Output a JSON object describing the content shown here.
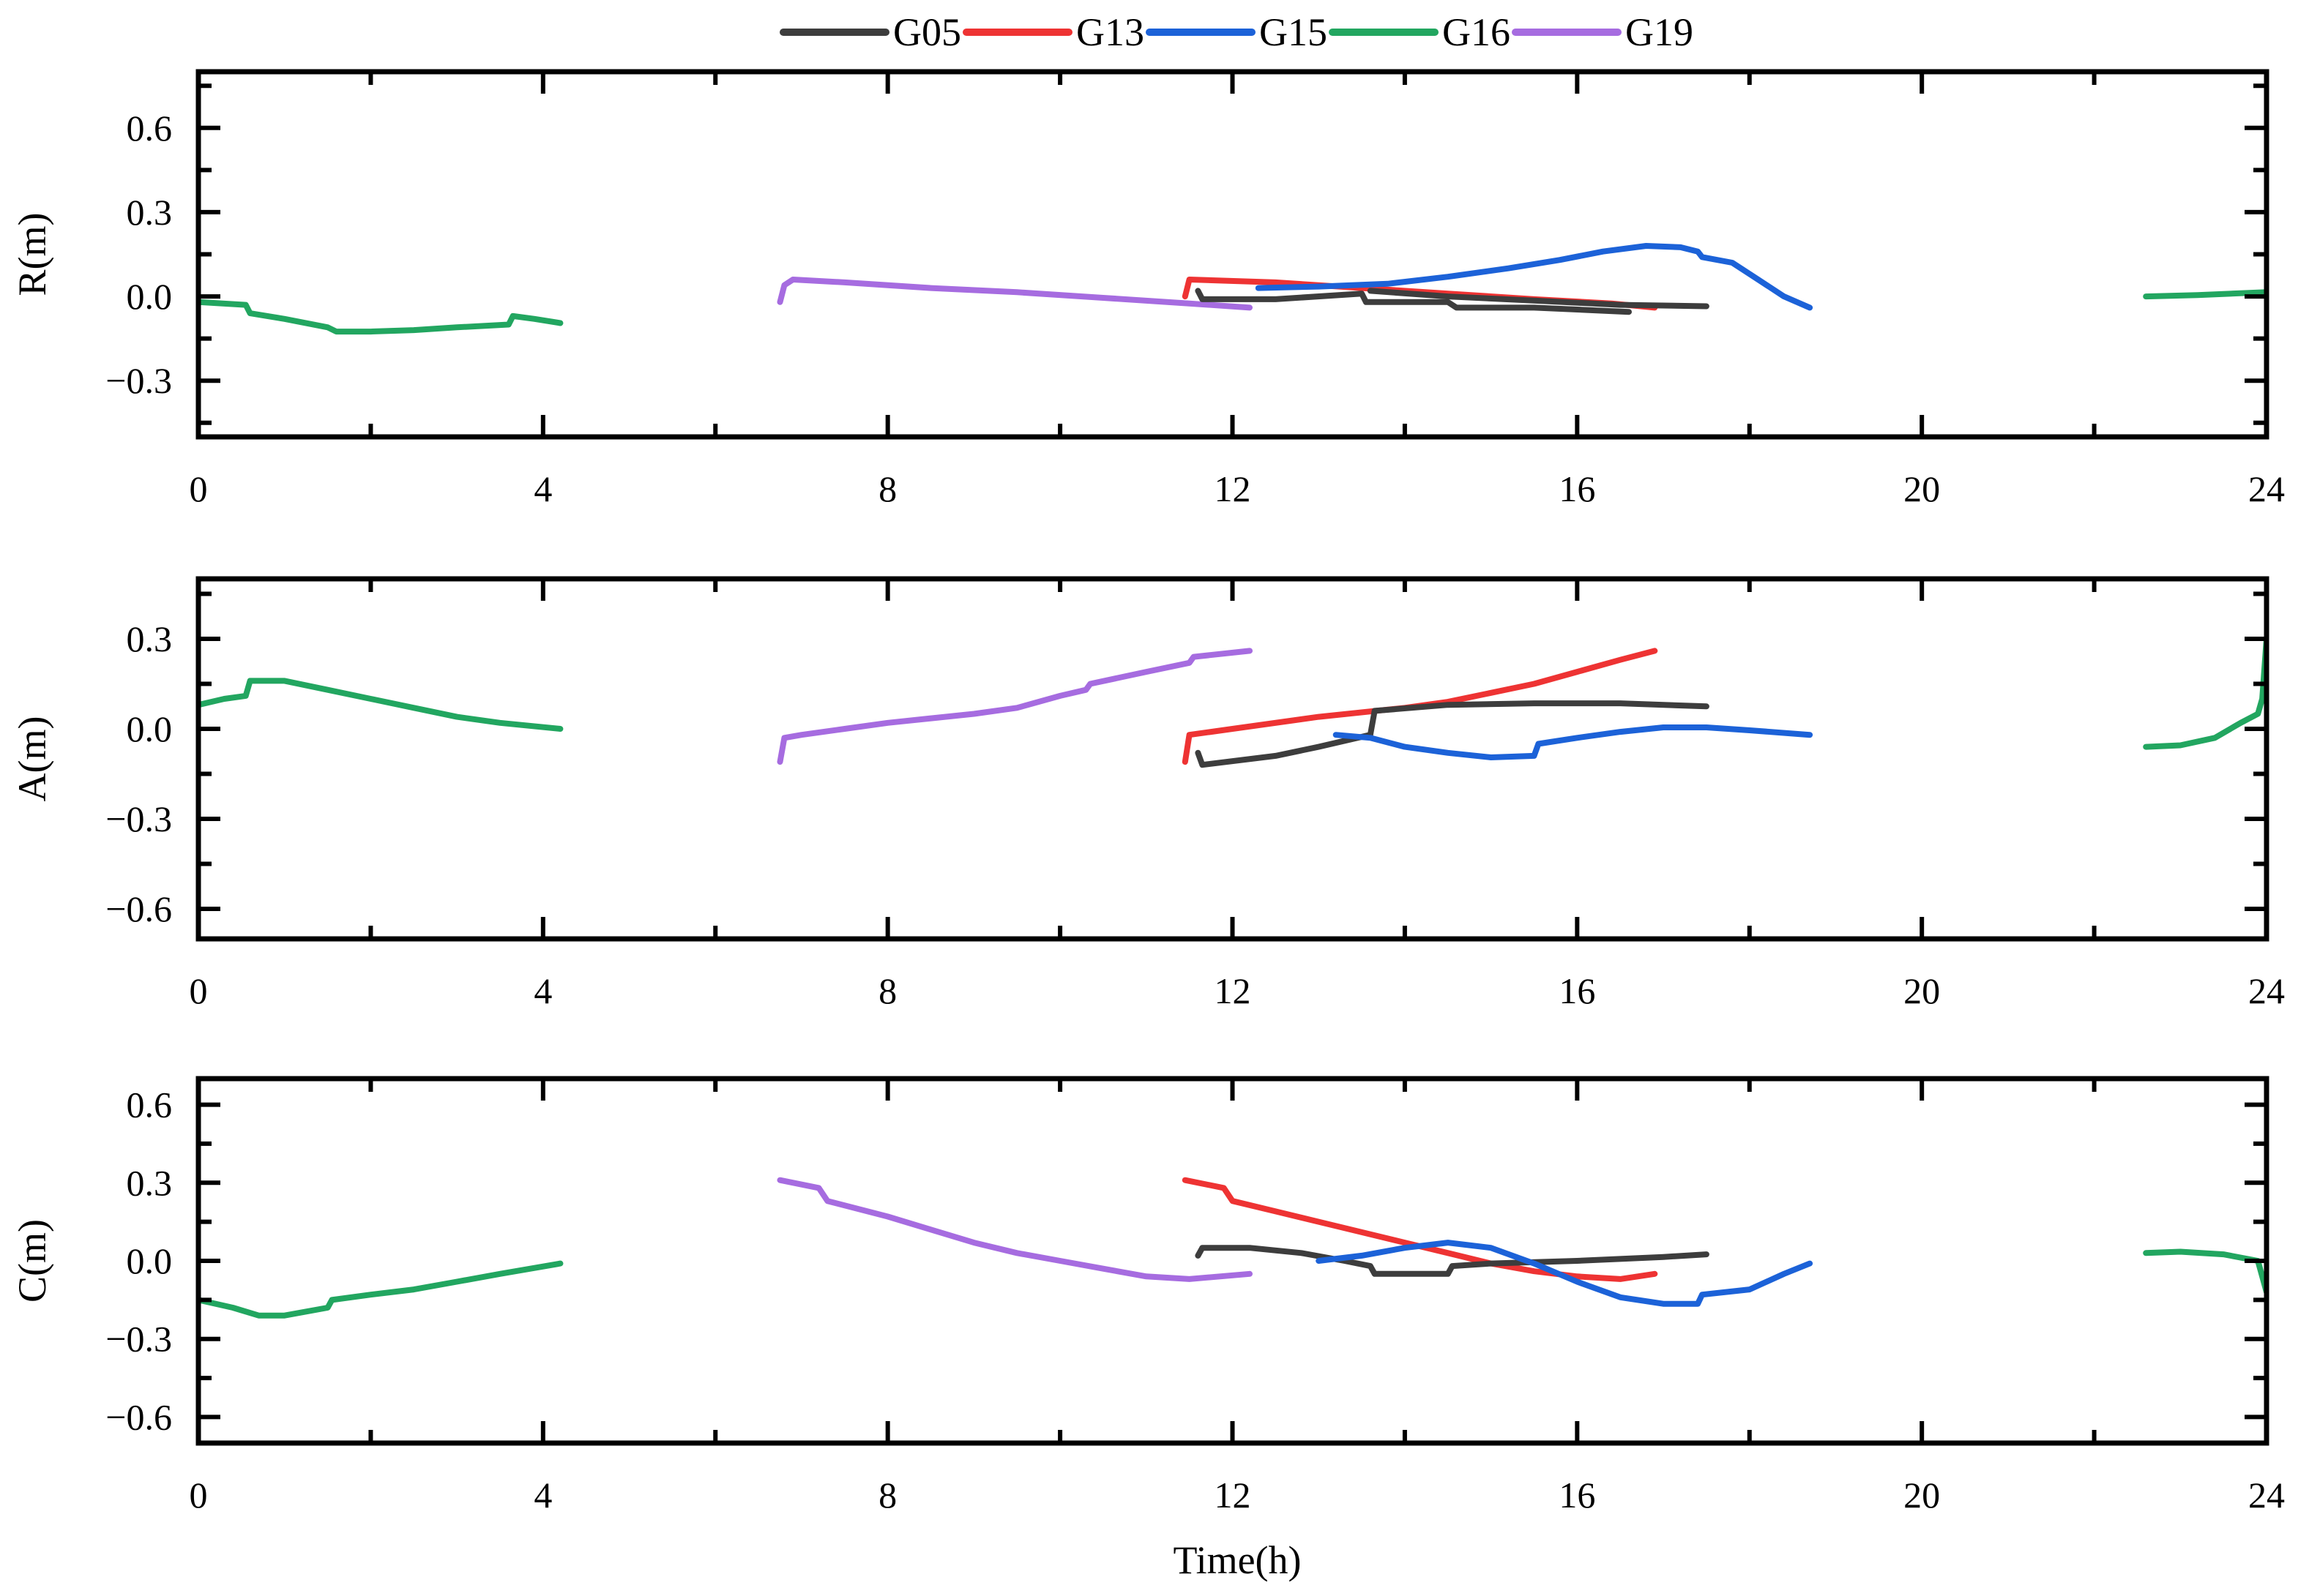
{
  "legend": [
    {
      "name": "G05",
      "color": "#3d3d3d"
    },
    {
      "name": "G13",
      "color": "#ee3333"
    },
    {
      "name": "G15",
      "color": "#1c62d8"
    },
    {
      "name": "G16",
      "color": "#22a660"
    },
    {
      "name": "G19",
      "color": "#a66ce0"
    }
  ],
  "x_axis": {
    "label": "Time(h)",
    "ticks": [
      "0",
      "4",
      "8",
      "12",
      "16",
      "20",
      "24"
    ]
  },
  "chart_data": [
    {
      "type": "line",
      "ylabel": "R(m)",
      "xlim": [
        0,
        24
      ],
      "ylim": [
        -0.5,
        0.8
      ],
      "yticks": [
        0.6,
        0.3,
        0.0,
        -0.3
      ],
      "ytick_labels": [
        "0.6",
        "0.3",
        "0.0",
        "−0.3"
      ],
      "series": [
        {
          "name": "G16",
          "color": "#22a660",
          "segments": [
            [
              [
                0,
                -0.02
              ],
              [
                0.55,
                -0.03
              ],
              [
                0.6,
                -0.06
              ],
              [
                1.0,
                -0.08
              ],
              [
                1.5,
                -0.11
              ],
              [
                1.6,
                -0.125
              ],
              [
                2.0,
                -0.125
              ],
              [
                2.5,
                -0.12
              ],
              [
                3.0,
                -0.11
              ],
              [
                3.6,
                -0.1
              ],
              [
                3.65,
                -0.07
              ],
              [
                3.9,
                -0.08
              ],
              [
                4.2,
                -0.095
              ]
            ],
            [
              [
                22.6,
                0.0
              ],
              [
                23.2,
                0.005
              ],
              [
                24,
                0.015
              ]
            ]
          ]
        },
        {
          "name": "G19",
          "color": "#a66ce0",
          "segments": [
            [
              [
                6.75,
                -0.02
              ],
              [
                6.8,
                0.04
              ],
              [
                6.9,
                0.06
              ],
              [
                7.5,
                0.05
              ],
              [
                8.5,
                0.03
              ],
              [
                9.5,
                0.015
              ],
              [
                10.5,
                -0.005
              ],
              [
                11.5,
                -0.025
              ],
              [
                12.2,
                -0.04
              ]
            ]
          ]
        },
        {
          "name": "G13",
          "color": "#ee3333",
          "segments": [
            [
              [
                11.45,
                0.0
              ],
              [
                11.5,
                0.06
              ],
              [
                12.5,
                0.05
              ],
              [
                13.5,
                0.03
              ],
              [
                14.5,
                0.01
              ],
              [
                15.5,
                -0.01
              ],
              [
                16.4,
                -0.025
              ],
              [
                16.9,
                -0.04
              ]
            ]
          ]
        },
        {
          "name": "G05",
          "color": "#3d3d3d",
          "segments": [
            [
              [
                11.6,
                0.02
              ],
              [
                11.65,
                -0.01
              ],
              [
                12.5,
                -0.01
              ],
              [
                13.5,
                0.01
              ],
              [
                13.55,
                -0.02
              ],
              [
                14.5,
                -0.02
              ],
              [
                14.6,
                -0.04
              ],
              [
                15.5,
                -0.04
              ],
              [
                16.6,
                -0.055
              ]
            ],
            [
              [
                13.6,
                0.02
              ],
              [
                14.5,
                0.0
              ],
              [
                15.5,
                -0.015
              ],
              [
                16.5,
                -0.03
              ],
              [
                17.5,
                -0.035
              ]
            ]
          ]
        },
        {
          "name": "G15",
          "color": "#1c62d8",
          "segments": [
            [
              [
                12.3,
                0.03
              ],
              [
                13.0,
                0.035
              ],
              [
                13.8,
                0.045
              ],
              [
                14.5,
                0.07
              ],
              [
                15.2,
                0.1
              ],
              [
                15.8,
                0.13
              ],
              [
                16.3,
                0.16
              ],
              [
                16.8,
                0.18
              ],
              [
                17.2,
                0.175
              ],
              [
                17.4,
                0.16
              ],
              [
                17.45,
                0.14
              ],
              [
                17.8,
                0.12
              ],
              [
                18.1,
                0.06
              ],
              [
                18.4,
                0.0
              ],
              [
                18.7,
                -0.04
              ]
            ]
          ]
        }
      ]
    },
    {
      "type": "line",
      "ylabel": "A(m)",
      "xlim": [
        0,
        24
      ],
      "ylim": [
        -0.7,
        0.5
      ],
      "yticks": [
        0.3,
        0.0,
        -0.3,
        -0.6
      ],
      "ytick_labels": [
        "0.3",
        "0.0",
        "−0.3",
        "−0.6"
      ],
      "series": [
        {
          "name": "G16",
          "color": "#22a660",
          "segments": [
            [
              [
                0,
                0.08
              ],
              [
                0.3,
                0.1
              ],
              [
                0.55,
                0.11
              ],
              [
                0.6,
                0.16
              ],
              [
                1.0,
                0.16
              ],
              [
                1.5,
                0.13
              ],
              [
                2.0,
                0.1
              ],
              [
                2.5,
                0.07
              ],
              [
                3.0,
                0.04
              ],
              [
                3.5,
                0.02
              ],
              [
                4.2,
                0.0
              ]
            ],
            [
              [
                22.6,
                -0.06
              ],
              [
                23.0,
                -0.055
              ],
              [
                23.4,
                -0.03
              ],
              [
                23.7,
                0.02
              ],
              [
                23.9,
                0.05
              ],
              [
                23.95,
                0.1
              ],
              [
                24,
                0.3
              ]
            ]
          ]
        },
        {
          "name": "G19",
          "color": "#a66ce0",
          "segments": [
            [
              [
                6.75,
                -0.11
              ],
              [
                6.8,
                -0.03
              ],
              [
                7.0,
                -0.02
              ],
              [
                7.5,
                0.0
              ],
              [
                8.0,
                0.02
              ],
              [
                9.0,
                0.05
              ],
              [
                9.5,
                0.07
              ],
              [
                10.0,
                0.11
              ],
              [
                10.3,
                0.13
              ],
              [
                10.35,
                0.15
              ],
              [
                11.0,
                0.19
              ],
              [
                11.5,
                0.22
              ],
              [
                11.55,
                0.24
              ],
              [
                12.2,
                0.26
              ]
            ]
          ]
        },
        {
          "name": "G13",
          "color": "#ee3333",
          "segments": [
            [
              [
                11.45,
                -0.11
              ],
              [
                11.5,
                -0.02
              ],
              [
                12.0,
                0.0
              ],
              [
                13.0,
                0.04
              ],
              [
                14.0,
                0.07
              ],
              [
                14.5,
                0.09
              ],
              [
                15.0,
                0.12
              ],
              [
                15.5,
                0.15
              ],
              [
                16.0,
                0.19
              ],
              [
                16.5,
                0.23
              ],
              [
                16.9,
                0.26
              ]
            ]
          ]
        },
        {
          "name": "G05",
          "color": "#3d3d3d",
          "segments": [
            [
              [
                11.6,
                -0.08
              ],
              [
                11.65,
                -0.12
              ],
              [
                12.5,
                -0.09
              ],
              [
                13.0,
                -0.06
              ],
              [
                13.6,
                -0.02
              ],
              [
                13.65,
                0.06
              ],
              [
                14.5,
                0.08
              ],
              [
                15.5,
                0.085
              ],
              [
                16.5,
                0.085
              ],
              [
                17.5,
                0.075
              ]
            ]
          ]
        },
        {
          "name": "G15",
          "color": "#1c62d8",
          "segments": [
            [
              [
                13.2,
                -0.02
              ],
              [
                13.6,
                -0.03
              ],
              [
                14.0,
                -0.06
              ],
              [
                14.5,
                -0.08
              ],
              [
                15.0,
                -0.095
              ],
              [
                15.5,
                -0.09
              ],
              [
                15.55,
                -0.05
              ],
              [
                16.0,
                -0.03
              ],
              [
                16.5,
                -0.01
              ],
              [
                17.0,
                0.005
              ],
              [
                17.5,
                0.005
              ],
              [
                18.0,
                -0.005
              ],
              [
                18.7,
                -0.02
              ]
            ]
          ]
        }
      ]
    },
    {
      "type": "line",
      "ylabel": "C(m)",
      "xlim": [
        0,
        24
      ],
      "ylim": [
        -0.7,
        0.7
      ],
      "yticks": [
        0.6,
        0.3,
        0.0,
        -0.3,
        -0.6
      ],
      "ytick_labels": [
        "0.6",
        "0.3",
        "0.0",
        "−0.3",
        "−0.6"
      ],
      "series": [
        {
          "name": "G16",
          "color": "#22a660",
          "segments": [
            [
              [
                0,
                -0.15
              ],
              [
                0.4,
                -0.18
              ],
              [
                0.7,
                -0.21
              ],
              [
                1.0,
                -0.21
              ],
              [
                1.5,
                -0.18
              ],
              [
                1.55,
                -0.15
              ],
              [
                2.0,
                -0.13
              ],
              [
                2.5,
                -0.11
              ],
              [
                3.0,
                -0.08
              ],
              [
                3.5,
                -0.05
              ],
              [
                4.2,
                -0.01
              ]
            ],
            [
              [
                22.6,
                0.03
              ],
              [
                23.0,
                0.035
              ],
              [
                23.5,
                0.025
              ],
              [
                23.9,
                0.0
              ],
              [
                24,
                -0.12
              ]
            ]
          ]
        },
        {
          "name": "G19",
          "color": "#a66ce0",
          "segments": [
            [
              [
                6.75,
                0.31
              ],
              [
                7.2,
                0.28
              ],
              [
                7.3,
                0.23
              ],
              [
                8.0,
                0.17
              ],
              [
                8.5,
                0.12
              ],
              [
                9.0,
                0.07
              ],
              [
                9.5,
                0.03
              ],
              [
                10.0,
                0.0
              ],
              [
                10.5,
                -0.03
              ],
              [
                11.0,
                -0.06
              ],
              [
                11.5,
                -0.07
              ],
              [
                12.2,
                -0.05
              ]
            ]
          ]
        },
        {
          "name": "G13",
          "color": "#ee3333",
          "segments": [
            [
              [
                11.45,
                0.31
              ],
              [
                11.9,
                0.28
              ],
              [
                12.0,
                0.23
              ],
              [
                12.5,
                0.19
              ],
              [
                13.0,
                0.15
              ],
              [
                13.5,
                0.11
              ],
              [
                14.0,
                0.07
              ],
              [
                14.5,
                0.03
              ],
              [
                15.0,
                -0.01
              ],
              [
                15.5,
                -0.04
              ],
              [
                16.0,
                -0.06
              ],
              [
                16.5,
                -0.07
              ],
              [
                16.9,
                -0.05
              ]
            ]
          ]
        },
        {
          "name": "G05",
          "color": "#3d3d3d",
          "segments": [
            [
              [
                11.6,
                0.02
              ],
              [
                11.65,
                0.05
              ],
              [
                12.2,
                0.05
              ],
              [
                12.8,
                0.03
              ],
              [
                13.3,
                0.0
              ],
              [
                13.6,
                -0.02
              ],
              [
                13.65,
                -0.05
              ],
              [
                14.5,
                -0.05
              ],
              [
                14.55,
                -0.02
              ],
              [
                15.0,
                -0.01
              ],
              [
                16.0,
                0.0
              ],
              [
                17.0,
                0.015
              ],
              [
                17.5,
                0.025
              ]
            ]
          ]
        },
        {
          "name": "G15",
          "color": "#1c62d8",
          "segments": [
            [
              [
                13.0,
                0.0
              ],
              [
                13.5,
                0.02
              ],
              [
                14.0,
                0.05
              ],
              [
                14.5,
                0.07
              ],
              [
                15.0,
                0.05
              ],
              [
                15.5,
                -0.01
              ],
              [
                16.0,
                -0.08
              ],
              [
                16.5,
                -0.14
              ],
              [
                17.0,
                -0.165
              ],
              [
                17.4,
                -0.165
              ],
              [
                17.45,
                -0.13
              ],
              [
                18.0,
                -0.11
              ],
              [
                18.4,
                -0.05
              ],
              [
                18.7,
                -0.01
              ]
            ]
          ]
        }
      ]
    }
  ]
}
